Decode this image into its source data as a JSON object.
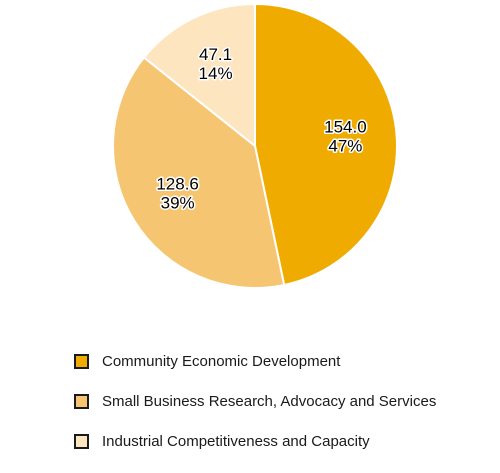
{
  "chart_data": {
    "type": "pie",
    "title": "",
    "series": [
      {
        "name": "Community Economic Development",
        "value": 154.0,
        "percent_label": "47%",
        "color": "#f0ab00"
      },
      {
        "name": "Small Business Research, Advocacy and Services",
        "value": 128.6,
        "percent_label": "39%",
        "color": "#f6c572"
      },
      {
        "name": "Industrial Competitiveness and Capacity",
        "value": 47.1,
        "percent_label": "14%",
        "color": "#fde5c0"
      }
    ],
    "value_labels": [
      "154.0",
      "128.6",
      "47.1"
    ],
    "start_angle_deg": 0,
    "direction": "clockwise",
    "slice_border_color": "#ffffff",
    "legend_position": "bottom"
  }
}
